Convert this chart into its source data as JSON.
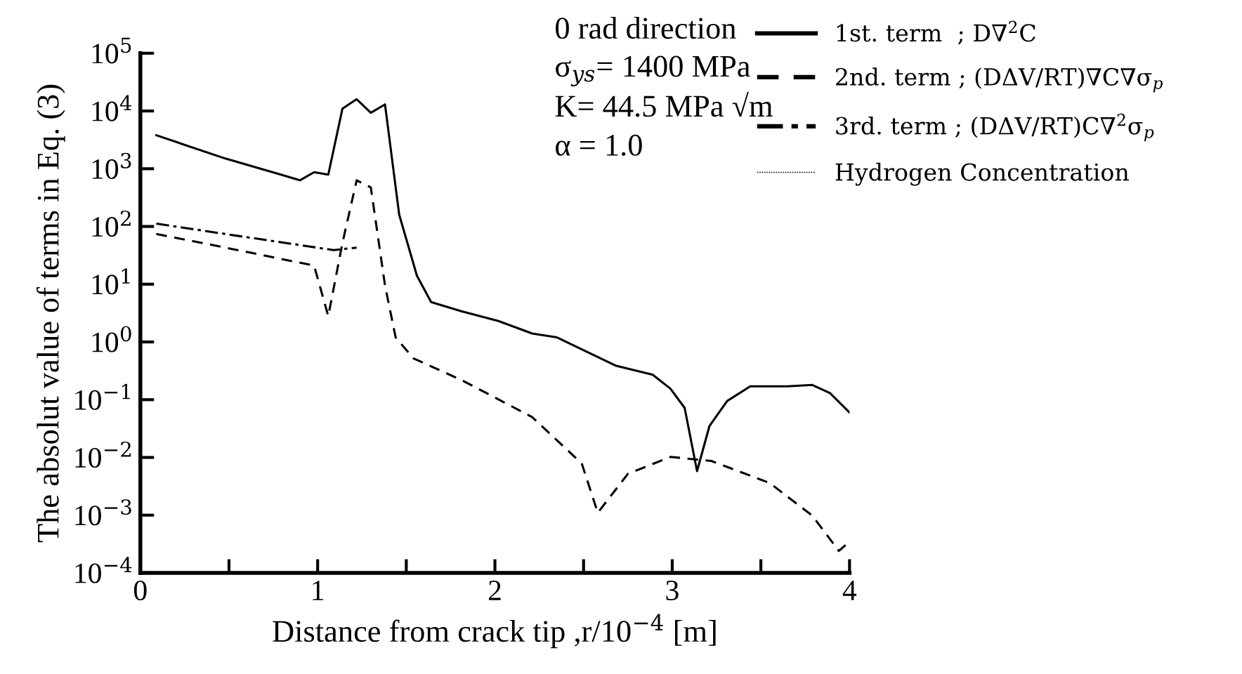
{
  "chart_data": {
    "type": "line",
    "xlabel": "Distance from crack tip ,r/10$^{−4}$ [m]",
    "ylabel": "The absolut value of terms in Eq. (3)",
    "annotations": [
      "0 rad direction",
      "σ$_{ys}$= 1400 MPa",
      "K= 44.5 MPa √m",
      "α = 1.0"
    ],
    "log": "y",
    "grid": false,
    "legend": "top right",
    "xlim": [
      0,
      4
    ],
    "ylim": [
      0.0001,
      100000
    ],
    "xticks": [
      0,
      {
        "value": 0.5,
        "label": null
      },
      1,
      {
        "value": 1.5,
        "label": null
      },
      2,
      {
        "value": 2.5,
        "label": null
      },
      3,
      {
        "value": 3.5,
        "label": null
      },
      4
    ],
    "yticks": [
      {
        "value": 0.0001,
        "label": "10$^{−4}$"
      },
      {
        "value": 0.001,
        "label": "10$^{−3}$"
      },
      {
        "value": 0.01,
        "label": "10$^{−2}$"
      },
      {
        "value": 0.1,
        "label": "10$^{−1}$"
      },
      {
        "value": 1,
        "label": "10$^{0}$"
      },
      {
        "value": 10,
        "label": "10$^{1}$"
      },
      {
        "value": 100,
        "label": "10$^{2}$"
      },
      {
        "value": 1000,
        "label": "10$^{3}$"
      },
      {
        "value": 10000,
        "label": "10$^{4}$"
      },
      {
        "value": 100000,
        "label": "10$^{5}$"
      }
    ],
    "series": [
      {
        "name": "1st. term  ; D∇$^{2}$C",
        "color": "#000000",
        "line_style": "solid",
        "x": [
          0.09,
          0.48,
          0.8,
          0.9,
          0.98,
          1.06,
          1.14,
          1.22,
          1.3,
          1.38,
          1.46,
          1.56,
          1.64,
          1.81,
          2.02,
          2.21,
          2.35,
          2.68,
          2.89,
          2.99,
          3.07,
          3.14,
          3.21,
          3.31,
          3.44,
          3.65,
          3.79,
          3.89,
          4.0
        ],
        "values": [
          3800,
          1500,
          780,
          630,
          870,
          790,
          11000,
          16000,
          9300,
          13000,
          160,
          14,
          4.9,
          3.4,
          2.3,
          1.4,
          1.2,
          0.39,
          0.27,
          0.155,
          0.072,
          0.0058,
          0.035,
          0.095,
          0.17,
          0.17,
          0.18,
          0.13,
          0.06
        ]
      },
      {
        "name": "2nd. term ; (DΔV/RT)∇C∇σ$_{p}$",
        "color": "#000000",
        "line_style": "dashed",
        "x": [
          0.09,
          0.48,
          0.98,
          1.06,
          1.14,
          1.22,
          1.3,
          1.38,
          1.44,
          1.54,
          1.81,
          2.21,
          2.49,
          2.58,
          2.75,
          2.99,
          3.22,
          3.55,
          3.79,
          3.94,
          4.0
        ],
        "values": [
          74,
          43,
          21,
          2.8,
          52,
          630,
          475,
          9.5,
          1.2,
          0.52,
          0.22,
          0.05,
          0.0078,
          0.0011,
          0.0052,
          0.0102,
          0.0087,
          0.0036,
          0.00098,
          0.00024,
          0.00035
        ]
      },
      {
        "name": "3rd. term ; (DΔV/RT)C∇$^{2}$σ$_{p}$",
        "color": "#000000",
        "line_style": "dashdot",
        "x": [
          0.09,
          0.48,
          1.09,
          1.22
        ],
        "values": [
          112,
          74,
          39,
          43
        ]
      },
      {
        "name": "Hydrogen Concentration",
        "color": "#000000",
        "line_style": "dotted"
      }
    ]
  }
}
